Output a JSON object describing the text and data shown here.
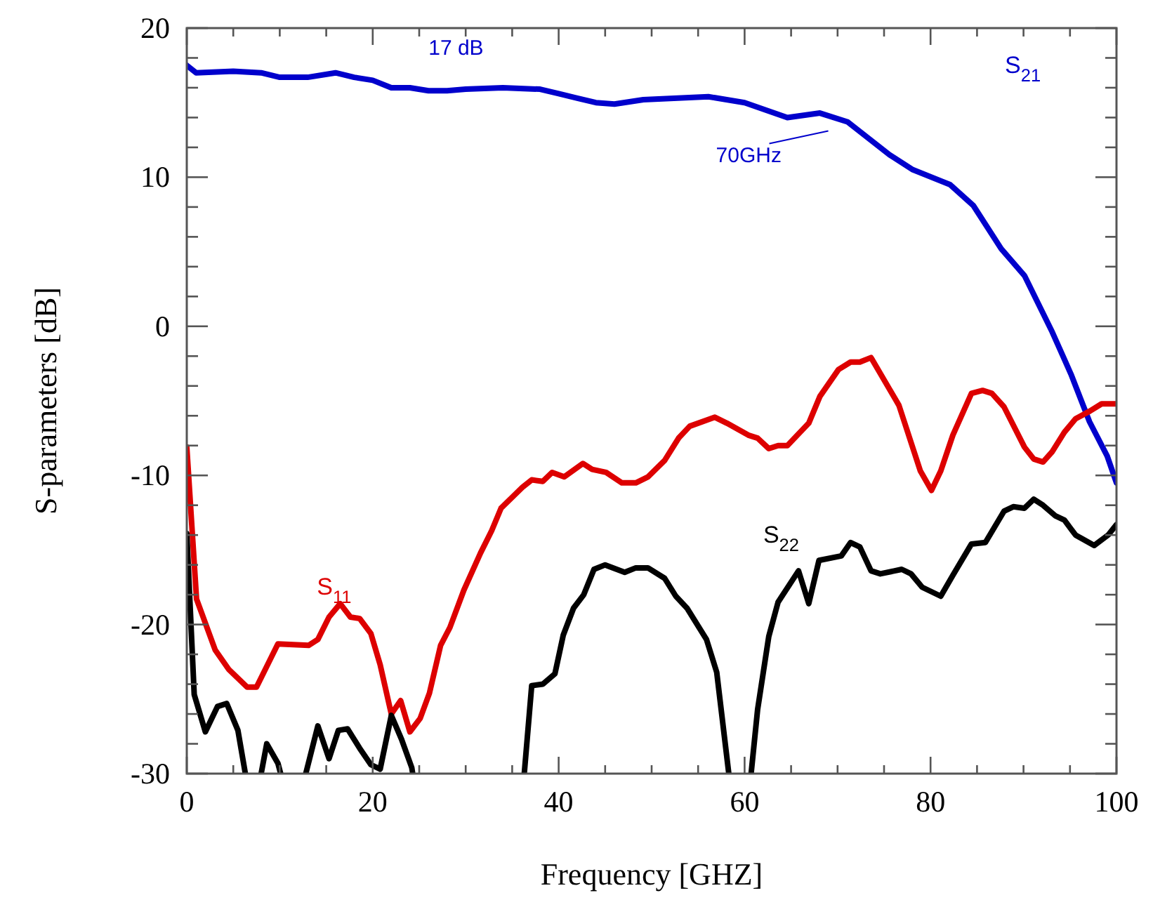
{
  "chart_data": {
    "type": "line",
    "xlabel": "Frequency [GHZ]",
    "ylabel": "S-parameters [dB]",
    "xlim": [
      0,
      100
    ],
    "ylim": [
      -30,
      20
    ],
    "xticks": [
      0,
      {
        "value": 5,
        "label": null
      },
      {
        "value": 10,
        "label": null
      },
      {
        "value": 15,
        "label": null
      },
      20,
      {
        "value": 25,
        "label": null
      },
      {
        "value": 30,
        "label": null
      },
      {
        "value": 35,
        "label": null
      },
      40,
      {
        "value": 45,
        "label": null
      },
      {
        "value": 50,
        "label": null
      },
      {
        "value": 55,
        "label": null
      },
      60,
      {
        "value": 65,
        "label": null
      },
      {
        "value": 70,
        "label": null
      },
      {
        "value": 75,
        "label": null
      },
      80,
      {
        "value": 85,
        "label": null
      },
      {
        "value": 90,
        "label": null
      },
      {
        "value": 95,
        "label": null
      },
      100
    ],
    "yticks": [
      -30,
      {
        "value": -28,
        "label": null
      },
      {
        "value": -26,
        "label": null
      },
      {
        "value": -24,
        "label": null
      },
      {
        "value": -22,
        "label": null
      },
      -20,
      {
        "value": -18,
        "label": null
      },
      {
        "value": -16,
        "label": null
      },
      {
        "value": -14,
        "label": null
      },
      {
        "value": -12,
        "label": null
      },
      -10,
      {
        "value": -8,
        "label": null
      },
      {
        "value": -6,
        "label": null
      },
      {
        "value": -4,
        "label": null
      },
      {
        "value": -2,
        "label": null
      },
      0,
      {
        "value": 2,
        "label": null
      },
      {
        "value": 4,
        "label": null
      },
      {
        "value": 6,
        "label": null
      },
      {
        "value": 8,
        "label": null
      },
      10,
      {
        "value": 12,
        "label": null
      },
      {
        "value": 14,
        "label": null
      },
      {
        "value": 16,
        "label": null
      },
      {
        "value": 18,
        "label": null
      },
      20
    ],
    "grid": false,
    "marker": "none",
    "line_style": "solid",
    "series": [
      {
        "name": "S$_{21}$",
        "color": "#0000cc",
        "x": [
          0,
          1,
          5,
          8,
          10,
          13,
          16,
          18,
          20,
          22,
          24,
          26,
          28,
          30,
          34,
          38,
          40,
          42,
          44,
          46,
          49.1,
          56.1,
          60,
          64.6,
          68.1,
          71.1,
          75.6,
          78.1,
          82.1,
          84.6,
          87.6,
          90.1,
          93.1,
          95.1,
          97.1,
          99,
          100
        ],
        "values": [
          17.5,
          17.0,
          17.1,
          17.0,
          16.7,
          16.7,
          17.0,
          16.7,
          16.5,
          16.0,
          16.0,
          15.8,
          15.8,
          15.9,
          16.0,
          15.9,
          15.6,
          15.3,
          15.0,
          14.9,
          15.2,
          15.4,
          15.0,
          14.0,
          14.3,
          13.7,
          11.5,
          10.5,
          9.5,
          8.1,
          5.2,
          3.4,
          -0.4,
          -3.2,
          -6.4,
          -8.7,
          -10.5
        ]
      },
      {
        "name": "S$_{11}$",
        "color": "#dd0000",
        "x": [
          0,
          1.05,
          3.05,
          4.5,
          6.5,
          7.5,
          9.8,
          13.1,
          14.1,
          15.3,
          16.5,
          17.6,
          18.6,
          19.8,
          20.8,
          22,
          23,
          24,
          25.1,
          26.1,
          27.3,
          28.3,
          29.8,
          31.6,
          32.8,
          33.8,
          36.1,
          37.1,
          38.3,
          39.3,
          40.6,
          42.6,
          43.6,
          45.1,
          46.8,
          48.3,
          49.6,
          51.4,
          52.9,
          54.1,
          56.8,
          58.1,
          60.4,
          61.4,
          62.6,
          63.6,
          64.6,
          66.9,
          68.1,
          70.1,
          71.4,
          72.4,
          73.6,
          76.6,
          78.9,
          80.1,
          81.1,
          82.4,
          84.4,
          85.6,
          86.6,
          87.9,
          90.1,
          91.1,
          92.1,
          93.1,
          94.4,
          95.6,
          97.1,
          98.4,
          100
        ],
        "values": [
          -8.1,
          -18.3,
          -21.7,
          -23.0,
          -24.2,
          -24.2,
          -21.3,
          -21.4,
          -21.0,
          -19.5,
          -18.6,
          -19.5,
          -19.6,
          -20.6,
          -22.7,
          -26.0,
          -25.1,
          -27.2,
          -26.3,
          -24.6,
          -21.4,
          -20.2,
          -17.7,
          -15.2,
          -13.7,
          -12.2,
          -10.8,
          -10.3,
          -10.4,
          -9.8,
          -10.1,
          -9.2,
          -9.6,
          -9.8,
          -10.5,
          -10.5,
          -10.1,
          -9.0,
          -7.5,
          -6.7,
          -6.1,
          -6.5,
          -7.3,
          -7.5,
          -8.2,
          -8.0,
          -8.0,
          -6.5,
          -4.7,
          -2.9,
          -2.4,
          -2.4,
          -2.1,
          -5.3,
          -9.7,
          -11.0,
          -9.7,
          -7.3,
          -4.5,
          -4.3,
          -4.5,
          -5.4,
          -8.1,
          -8.9,
          -9.1,
          -8.4,
          -7.1,
          -6.2,
          -5.7,
          -5.2,
          -5.2
        ]
      },
      {
        "name": "S$_{22}$",
        "color": "#000000",
        "x": [
          0,
          0.8,
          2,
          3.3,
          4.3,
          5.5,
          6.3,
          7,
          8,
          8.6,
          9.8,
          10.1,
          11.5,
          12.8,
          14.1,
          15.3,
          16.3,
          17.3,
          18.6,
          19.8,
          20.8,
          22,
          23.1,
          24.2,
          24.3,
          30,
          36.3,
          37.1,
          38.3,
          39.6,
          40.5,
          41.6,
          42.7,
          43.8,
          45,
          47.1,
          48.3,
          49.6,
          51.4,
          52.6,
          53.8,
          55.9,
          57,
          58.3,
          59.5,
          60.7,
          61.4,
          62.6,
          63.6,
          65.8,
          66.9,
          68,
          70.4,
          71.4,
          72.4,
          73.6,
          74.6,
          76.9,
          77.9,
          79.1,
          81.1,
          82.4,
          84.4,
          85.9,
          87.9,
          88.9,
          90.1,
          91.1,
          92.1,
          93.4,
          94.4,
          95.6,
          97.6,
          99.1,
          100
        ],
        "values": [
          -13.9,
          -24.7,
          -27.2,
          -25.5,
          -25.3,
          -27.1,
          -30,
          null,
          -30,
          -28.0,
          -29.3,
          -30,
          null,
          -30,
          -26.8,
          -29.0,
          -27.1,
          -27.0,
          -28.3,
          -29.4,
          -29.7,
          -26.1,
          -27.7,
          -29.6,
          -30,
          null,
          -30,
          -24.1,
          -24.0,
          -23.3,
          -20.7,
          -18.9,
          -18.0,
          -16.3,
          -16.0,
          -16.5,
          -16.2,
          -16.2,
          -16.9,
          -18.1,
          -18.9,
          -21.0,
          -23.2,
          -30,
          null,
          -30,
          -25.7,
          -20.8,
          -18.5,
          -16.4,
          -18.6,
          -15.7,
          -15.4,
          -14.5,
          -14.8,
          -16.4,
          -16.6,
          -16.3,
          -16.6,
          -17.5,
          -18.1,
          -16.7,
          -14.6,
          -14.5,
          -12.4,
          -12.1,
          -12.2,
          -11.6,
          -12.0,
          -12.7,
          -13.0,
          -14.0,
          -14.7,
          -14.0,
          -13.3
        ]
      }
    ],
    "annotations": [
      "17 dB",
      "70GHz"
    ]
  }
}
